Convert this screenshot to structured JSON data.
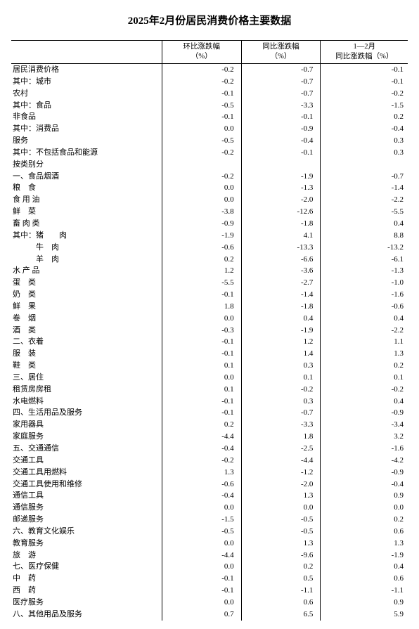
{
  "title": "2025年2月份居民消费价格主要数据",
  "columns": {
    "label": "",
    "col1": "环比涨跌幅<br>（%）",
    "col2": "同比涨跌幅<br>（%）",
    "col3": "1—2月<br>同比涨跌幅（%）"
  },
  "col_widths": {
    "label": "38%",
    "col1": "20%",
    "col2": "20%",
    "col3": "22%"
  },
  "rows": [
    {
      "label": "居民消费价格",
      "indent": 0,
      "v": [
        "-0.2",
        "-0.7",
        "-0.1"
      ]
    },
    {
      "label": "其中：城市",
      "indent": 1,
      "v": [
        "-0.2",
        "-0.7",
        "-0.1"
      ]
    },
    {
      "label": "农村",
      "indent": 3,
      "v": [
        "-0.1",
        "-0.7",
        "-0.2"
      ]
    },
    {
      "label": "其中：食品",
      "indent": 1,
      "v": [
        "-0.5",
        "-3.3",
        "-1.5"
      ]
    },
    {
      "label": "非食品",
      "indent": 3,
      "v": [
        "-0.1",
        "-0.1",
        "0.2"
      ]
    },
    {
      "label": "其中：消费品",
      "indent": 1,
      "v": [
        "0.0",
        "-0.9",
        "-0.4"
      ]
    },
    {
      "label": "服务",
      "indent": 3,
      "v": [
        "-0.5",
        "-0.4",
        "0.3"
      ]
    },
    {
      "label": "其中：不包括食品和能源",
      "indent": 1,
      "v": [
        "-0.2",
        "-0.1",
        "0.3"
      ]
    },
    {
      "label": "按类别分",
      "indent": 0,
      "v": [
        "",
        "",
        ""
      ]
    },
    {
      "label": "一、食品烟酒",
      "indent": 0,
      "v": [
        "-0.2",
        "-1.9",
        "-0.7"
      ]
    },
    {
      "label": "粮　食",
      "indent": 2,
      "v": [
        "0.0",
        "-1.3",
        "-1.4"
      ]
    },
    {
      "label": "食 用 油",
      "indent": 2,
      "v": [
        "0.0",
        "-2.0",
        "-2.2"
      ]
    },
    {
      "label": "鲜　菜",
      "indent": 2,
      "v": [
        "-3.8",
        "-12.6",
        "-5.5"
      ]
    },
    {
      "label": "畜 肉 类",
      "indent": 2,
      "v": [
        "-0.9",
        "-1.8",
        "0.4"
      ]
    },
    {
      "label": "其中：猪　　肉",
      "indent": 3,
      "v": [
        "-1.9",
        "4.1",
        "8.8"
      ]
    },
    {
      "label": "牛　肉",
      "indent": 3,
      "pad": "　　　",
      "v": [
        "-0.6",
        "-13.3",
        "-13.2"
      ]
    },
    {
      "label": "羊　肉",
      "indent": 3,
      "pad": "　　　",
      "v": [
        "0.2",
        "-6.6",
        "-6.1"
      ]
    },
    {
      "label": "水 产 品",
      "indent": 2,
      "v": [
        "1.2",
        "-3.6",
        "-1.3"
      ]
    },
    {
      "label": "蛋　类",
      "indent": 2,
      "v": [
        "-5.5",
        "-2.7",
        "-1.0"
      ]
    },
    {
      "label": "奶　类",
      "indent": 2,
      "v": [
        "-0.1",
        "-1.4",
        "-1.6"
      ]
    },
    {
      "label": "鲜　果",
      "indent": 2,
      "v": [
        "1.8",
        "-1.8",
        "-0.6"
      ]
    },
    {
      "label": "卷　烟",
      "indent": 2,
      "v": [
        "0.0",
        "0.4",
        "0.4"
      ]
    },
    {
      "label": "酒　类",
      "indent": 2,
      "v": [
        "-0.3",
        "-1.9",
        "-2.2"
      ]
    },
    {
      "label": "二、衣着",
      "indent": 0,
      "v": [
        "-0.1",
        "1.2",
        "1.1"
      ]
    },
    {
      "label": "服　装",
      "indent": 2,
      "v": [
        "-0.1",
        "1.4",
        "1.3"
      ]
    },
    {
      "label": "鞋　类",
      "indent": 2,
      "v": [
        "0.1",
        "0.3",
        "0.2"
      ]
    },
    {
      "label": "三、居住",
      "indent": 0,
      "v": [
        "0.0",
        "0.1",
        "0.1"
      ]
    },
    {
      "label": "租赁房房租",
      "indent": 2,
      "v": [
        "0.1",
        "-0.2",
        "-0.2"
      ]
    },
    {
      "label": "水电燃料",
      "indent": 2,
      "v": [
        "-0.1",
        "0.3",
        "0.4"
      ]
    },
    {
      "label": "四、生活用品及服务",
      "indent": 0,
      "v": [
        "-0.1",
        "-0.7",
        "-0.9"
      ]
    },
    {
      "label": "家用器具",
      "indent": 2,
      "v": [
        "0.2",
        "-3.3",
        "-3.4"
      ]
    },
    {
      "label": "家庭服务",
      "indent": 2,
      "v": [
        "-4.4",
        "1.8",
        "3.2"
      ]
    },
    {
      "label": "五、交通通信",
      "indent": 0,
      "v": [
        "-0.4",
        "-2.5",
        "-1.6"
      ]
    },
    {
      "label": "交通工具",
      "indent": 2,
      "v": [
        "-0.2",
        "-4.4",
        "-4.2"
      ]
    },
    {
      "label": "交通工具用燃料",
      "indent": 2,
      "v": [
        "1.3",
        "-1.2",
        "-0.9"
      ]
    },
    {
      "label": "交通工具使用和维修",
      "indent": 2,
      "v": [
        "-0.6",
        "-2.0",
        "-0.4"
      ]
    },
    {
      "label": "通信工具",
      "indent": 2,
      "v": [
        "-0.4",
        "1.3",
        "0.9"
      ]
    },
    {
      "label": "通信服务",
      "indent": 2,
      "v": [
        "0.0",
        "0.0",
        "0.0"
      ]
    },
    {
      "label": "邮递服务",
      "indent": 2,
      "v": [
        "-1.5",
        "-0.5",
        "0.2"
      ]
    },
    {
      "label": "六、教育文化娱乐",
      "indent": 0,
      "v": [
        "-0.5",
        "-0.5",
        "0.6"
      ]
    },
    {
      "label": "教育服务",
      "indent": 2,
      "v": [
        "0.0",
        "1.3",
        "1.3"
      ]
    },
    {
      "label": "旅　游",
      "indent": 2,
      "v": [
        "-4.4",
        "-9.6",
        "-1.9"
      ]
    },
    {
      "label": "七、医疗保健",
      "indent": 0,
      "v": [
        "0.0",
        "0.2",
        "0.4"
      ]
    },
    {
      "label": "中　药",
      "indent": 2,
      "v": [
        "-0.1",
        "0.5",
        "0.6"
      ]
    },
    {
      "label": "西　药",
      "indent": 2,
      "v": [
        "-0.1",
        "-1.1",
        "-1.1"
      ]
    },
    {
      "label": "医疗服务",
      "indent": 2,
      "v": [
        "0.0",
        "0.6",
        "0.9"
      ]
    },
    {
      "label": "八、其他用品及服务",
      "indent": 0,
      "v": [
        "0.7",
        "6.5",
        "5.9"
      ]
    }
  ]
}
